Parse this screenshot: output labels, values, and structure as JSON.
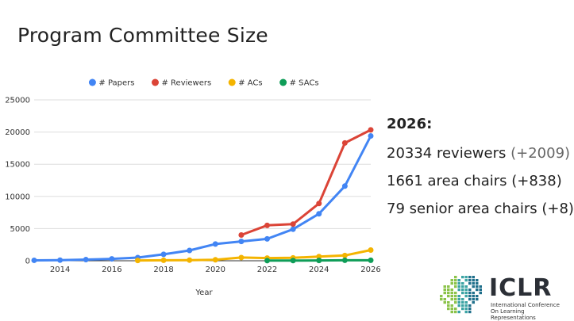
{
  "slide": {
    "title": "Program Committee Size"
  },
  "chart_data": {
    "type": "line",
    "title": "",
    "xlabel": "Year",
    "ylabel": "",
    "xlim": [
      2013,
      2026
    ],
    "ylim": [
      0,
      25000
    ],
    "x_ticks": [
      2014,
      2016,
      2018,
      2020,
      2022,
      2024,
      2026
    ],
    "y_ticks": [
      0,
      5000,
      10000,
      15000,
      20000,
      25000
    ],
    "grid": "horizontal",
    "legend_position": "top",
    "series": [
      {
        "name": "# Papers",
        "color": "#4285f4",
        "points": [
          [
            2013,
            67
          ],
          [
            2014,
            100
          ],
          [
            2015,
            180
          ],
          [
            2016,
            300
          ],
          [
            2017,
            490
          ],
          [
            2018,
            1000
          ],
          [
            2019,
            1600
          ],
          [
            2020,
            2600
          ],
          [
            2021,
            3000
          ],
          [
            2022,
            3400
          ],
          [
            2023,
            4900
          ],
          [
            2024,
            7300
          ],
          [
            2025,
            11600
          ],
          [
            2026,
            19400
          ]
        ]
      },
      {
        "name": "# Reviewers",
        "color": "#db4437",
        "points": [
          [
            2021,
            4000
          ],
          [
            2022,
            5500
          ],
          [
            2023,
            5700
          ],
          [
            2024,
            8900
          ],
          [
            2025,
            18300
          ],
          [
            2026,
            20334
          ]
        ]
      },
      {
        "name": "# ACs",
        "color": "#f4b400",
        "points": [
          [
            2017,
            50
          ],
          [
            2018,
            80
          ],
          [
            2019,
            100
          ],
          [
            2020,
            150
          ],
          [
            2021,
            500
          ],
          [
            2022,
            420
          ],
          [
            2023,
            450
          ],
          [
            2024,
            650
          ],
          [
            2025,
            823
          ],
          [
            2026,
            1661
          ]
        ]
      },
      {
        "name": "# SACs",
        "color": "#0f9d58",
        "points": [
          [
            2022,
            20
          ],
          [
            2023,
            30
          ],
          [
            2024,
            50
          ],
          [
            2025,
            71
          ],
          [
            2026,
            79
          ]
        ]
      }
    ]
  },
  "stats": {
    "heading": "2026:",
    "lines": [
      {
        "text": "20334 reviewers",
        "delta": "(+2009)"
      },
      {
        "text": "1661 area chairs",
        "delta": "(+838)"
      },
      {
        "text": "79 senior area chairs",
        "delta": "(+8)"
      }
    ]
  },
  "logo": {
    "name": "ICLR",
    "subtitle": "International Conference On Learning Representations",
    "colors": [
      "#8bc34a",
      "#3aa3a3",
      "#1f6f8b"
    ]
  }
}
